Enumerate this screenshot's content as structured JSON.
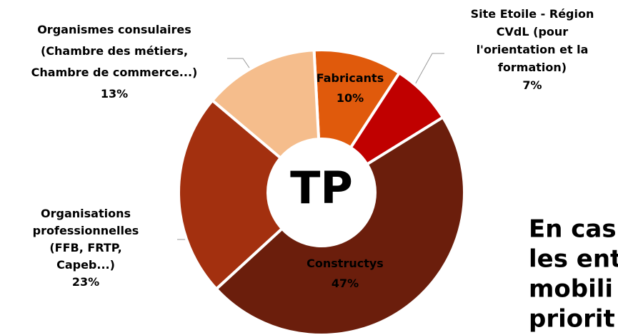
{
  "chart_data": {
    "type": "donut",
    "center_label": "TP",
    "categories": [
      [
        "Fabricants"
      ],
      [
        "Site Etoile - Région",
        "CVdL (pour",
        "l'orientation et la",
        "formation)"
      ],
      [
        "Constructys"
      ],
      [
        "Organisations",
        "professionnelles",
        "(FFB, FRTP,",
        "Capeb...)"
      ],
      [
        "Organismes consulaires",
        "(Chambre des métiers,",
        "Chambre de commerce...)"
      ]
    ],
    "values": [
      10,
      7,
      47,
      23,
      13
    ],
    "value_labels": [
      "10%",
      "7%",
      "47%",
      "23%",
      "13%"
    ],
    "colors": [
      "#e05a0c",
      "#c00000",
      "#6b1e0c",
      "#a3300f",
      "#f5bd8c"
    ],
    "side_text": [
      "En cas",
      "les ent",
      "mobili",
      "priorit"
    ]
  }
}
